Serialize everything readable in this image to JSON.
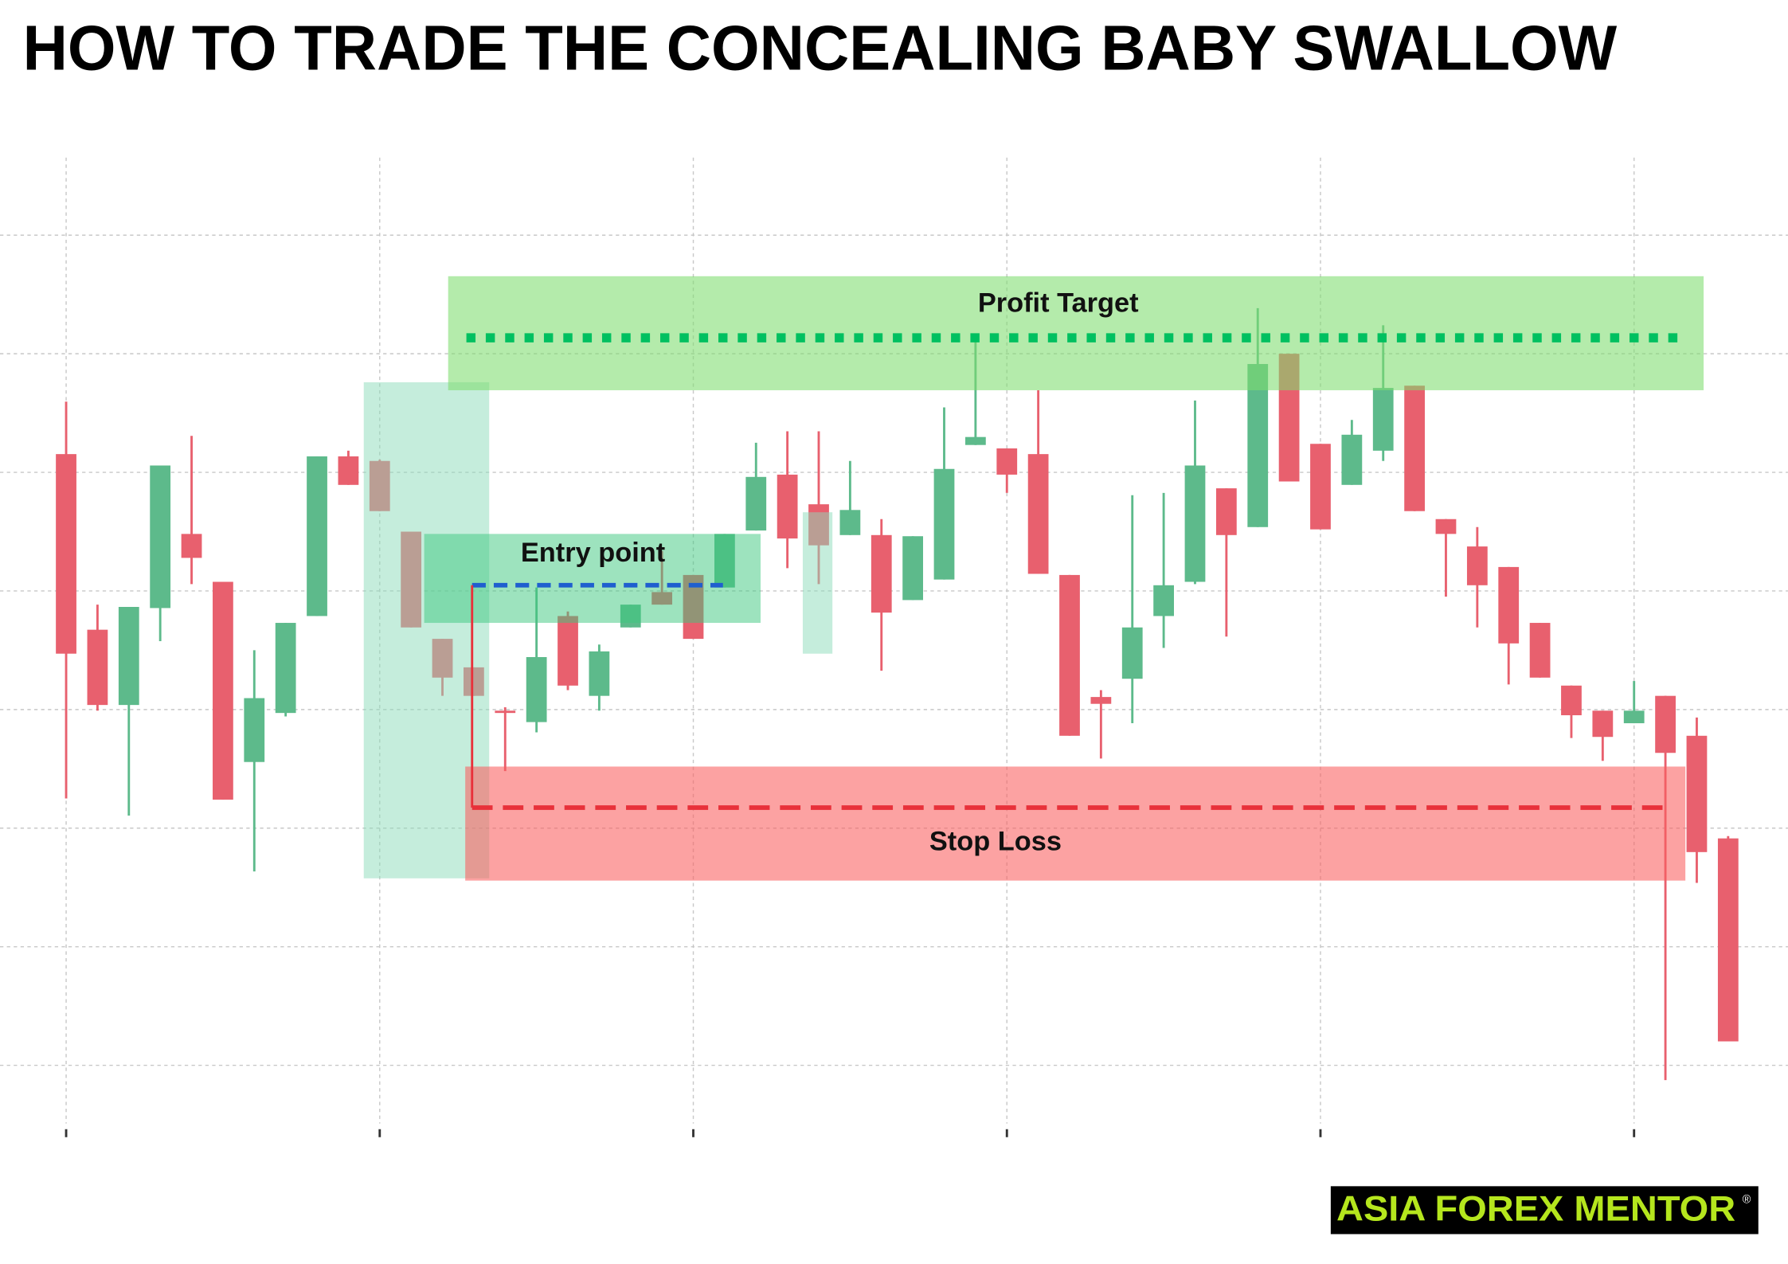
{
  "chart_data": {
    "type": "candlestick",
    "title": "HOW TO TRADE THE CONCEALING BABY SWALLOW",
    "ylim": [
      0,
      936
    ],
    "yticks": [
      104,
      208,
      312,
      416,
      520,
      624,
      728,
      832
    ],
    "grid": true,
    "up_color": "#5dba8b",
    "down_color": "#e8606e",
    "open": [
      640,
      486,
      420,
      505,
      570,
      528,
      370,
      413,
      498,
      638,
      634,
      572,
      478,
      453,
      415,
      405,
      498,
      428,
      488,
      519,
      534,
      523,
      573,
      622,
      596,
      569,
      569,
      512,
      530,
      648,
      645,
      640,
      534,
      427,
      443,
      498,
      528,
      610,
      576,
      728,
      649,
      613,
      643,
      700,
      583,
      559,
      541,
      492,
      437,
      415,
      404,
      428,
      393,
      303
    ],
    "high": [
      686,
      508,
      506,
      630,
      656,
      528,
      468,
      492,
      638,
      643,
      635,
      572,
      478,
      453,
      418,
      523,
      502,
      473,
      508,
      555,
      534,
      570,
      650,
      660,
      660,
      634,
      583,
      568,
      681,
      742,
      645,
      696,
      534,
      433,
      604,
      606,
      687,
      610,
      768,
      728,
      649,
      670,
      753,
      700,
      583,
      576,
      541,
      492,
      437,
      415,
      441,
      428,
      409,
      305
    ],
    "low": [
      338,
      415,
      323,
      476,
      526,
      337,
      274,
      410,
      498,
      613,
      590,
      488,
      428,
      428,
      362,
      396,
      433,
      415,
      488,
      508,
      478,
      523,
      573,
      540,
      526,
      569,
      450,
      512,
      530,
      648,
      606,
      535,
      393,
      373,
      404,
      470,
      526,
      480,
      576,
      616,
      574,
      613,
      634,
      590,
      515,
      488,
      438,
      444,
      391,
      371,
      404,
      91,
      264,
      125
    ],
    "close": [
      465,
      420,
      506,
      630,
      549,
      337,
      426,
      492,
      638,
      613,
      590,
      488,
      444,
      428,
      413,
      462,
      437,
      467,
      508,
      508,
      478,
      570,
      620,
      566,
      560,
      591,
      501,
      568,
      627,
      655,
      622,
      535,
      393,
      421,
      488,
      525,
      630,
      569,
      719,
      616,
      574,
      657,
      698,
      590,
      570,
      525,
      474,
      444,
      411,
      392,
      415,
      378,
      291,
      125
    ],
    "annotations": {
      "profit": "Profit Target",
      "entry": "Entry point",
      "stop": "Stop Loss"
    }
  },
  "logo": {
    "text": "ASIA FOREX MENTOR",
    "mark": "®"
  }
}
